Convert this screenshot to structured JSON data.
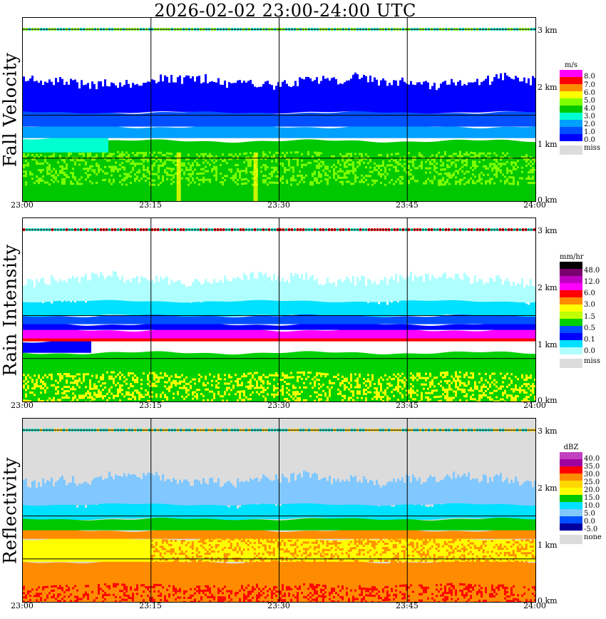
{
  "title": "2026-02-02   23:00-24:00 UTC",
  "x_tick_labels": [
    "23:00",
    "23:15",
    "23:30",
    "23:45",
    "24:00"
  ],
  "height_labels": [
    "3 km",
    "2 km",
    "1 km",
    "0 km"
  ],
  "chart_data": [
    {
      "type": "heatmap",
      "panel": "fall-velocity",
      "ylabel": "Fall Velocity",
      "colorbar_unit": "m/s",
      "colorbar_ticks": [
        "8.0",
        "7.0",
        "6.0",
        "5.0",
        "4.0",
        "3.0",
        "2.0",
        "1.0",
        "0.0"
      ],
      "colorbar_colors": [
        "#ff00ff",
        "#ff0000",
        "#ff8c00",
        "#ffff00",
        "#7fff00",
        "#00c800",
        "#00ffd0",
        "#00a0ff",
        "#0050ff",
        "#0000ff"
      ],
      "missing_label": "miss",
      "x_range": [
        "23:00",
        "24:00"
      ],
      "y_range_km": [
        0,
        3.2
      ],
      "background": "#ffffff",
      "layers": [
        {
          "from_km": 0.0,
          "to_km": 1.05,
          "color": "#00c800"
        },
        {
          "from_km": 0.3,
          "to_km": 0.85,
          "color": "#7fff00",
          "sparse": true
        },
        {
          "from_km": 0.85,
          "to_km": 1.1,
          "color": "#00ffd0",
          "extent": [
            "23:00",
            "23:10"
          ]
        },
        {
          "from_km": 1.1,
          "to_km": 1.3,
          "color": "#00a0ff"
        },
        {
          "from_km": 1.3,
          "to_km": 1.55,
          "color": "#0050ff"
        },
        {
          "from_km": 1.55,
          "to_km": 2.0,
          "color": "#0000ff",
          "ragged": true
        }
      ],
      "streaks": [
        {
          "time": "23:18",
          "color": "#ffff00"
        },
        {
          "time": "23:27",
          "color": "#ffff00"
        }
      ],
      "top_band_km": 3.0
    },
    {
      "type": "heatmap",
      "panel": "rain-intensity",
      "ylabel": "Rain Intensity",
      "colorbar_unit": "mm/hr",
      "colorbar_ticks": [
        "48.0",
        "12.0",
        "6.0",
        "3.0",
        "1.5",
        "0.5",
        "0.1",
        "0.0"
      ],
      "colorbar_colors": [
        "#000000",
        "#7a0070",
        "#c000c0",
        "#ff00ff",
        "#ff0000",
        "#ff8c00",
        "#ffff00",
        "#bfff00",
        "#00d000",
        "#0050ff",
        "#0000ff",
        "#00e0ff",
        "#b0ffff"
      ],
      "missing_label": "miss",
      "x_range": [
        "23:00",
        "24:00"
      ],
      "y_range_km": [
        0,
        3.2
      ],
      "background": "#ffffff",
      "layers": [
        {
          "from_km": 0.0,
          "to_km": 0.85,
          "color": "#00d000"
        },
        {
          "from_km": 0.0,
          "to_km": 0.5,
          "color": "#ffff00",
          "sparse": true
        },
        {
          "from_km": 0.85,
          "to_km": 1.05,
          "color": "#0000ff",
          "extent": [
            "23:00",
            "23:08"
          ]
        },
        {
          "from_km": 1.05,
          "to_km": 1.15,
          "color": "#ff0000"
        },
        {
          "from_km": 1.1,
          "to_km": 1.25,
          "color": "#ff00ff"
        },
        {
          "from_km": 1.25,
          "to_km": 1.35,
          "color": "#0000ff"
        },
        {
          "from_km": 1.35,
          "to_km": 1.5,
          "color": "#0050ff"
        },
        {
          "from_km": 1.5,
          "to_km": 1.75,
          "color": "#00e0ff",
          "ragged": true
        },
        {
          "from_km": 1.75,
          "to_km": 2.05,
          "color": "#b0ffff",
          "ragged": true
        }
      ],
      "top_band_km": 3.0
    },
    {
      "type": "heatmap",
      "panel": "reflectivity",
      "ylabel": "Reflectivity",
      "colorbar_unit": "dBZ",
      "colorbar_ticks": [
        "40.0",
        "35.0",
        "30.0",
        "25.0",
        "20.0",
        "15.0",
        "10.0",
        "5.0",
        "0.0",
        "-5.0"
      ],
      "colorbar_colors": [
        "#c040c0",
        "#a000a0",
        "#ff0000",
        "#ff8c00",
        "#ffd700",
        "#ffff00",
        "#00c800",
        "#00e0ff",
        "#80c8ff",
        "#0050ff",
        "#0000a0"
      ],
      "missing_label": "none",
      "x_range": [
        "23:00",
        "24:00"
      ],
      "y_range_km": [
        0,
        3.2
      ],
      "background": "#dcdcdc",
      "layers": [
        {
          "from_km": 0.0,
          "to_km": 0.7,
          "color": "#ff8c00"
        },
        {
          "from_km": 0.0,
          "to_km": 0.3,
          "color": "#ff0000",
          "sparse": true
        },
        {
          "from_km": 0.7,
          "to_km": 1.1,
          "color": "#ffff00"
        },
        {
          "from_km": 0.7,
          "to_km": 1.1,
          "color": "#ff8c00",
          "extent": [
            "23:15",
            "24:00"
          ],
          "sparse": true
        },
        {
          "from_km": 1.1,
          "to_km": 1.25,
          "color": "#ff8c00"
        },
        {
          "from_km": 1.25,
          "to_km": 1.45,
          "color": "#00c800"
        },
        {
          "from_km": 1.45,
          "to_km": 1.7,
          "color": "#00e0ff",
          "ragged": true
        },
        {
          "from_km": 1.7,
          "to_km": 2.05,
          "color": "#80c8ff",
          "ragged": true
        }
      ],
      "top_band_km": 3.0
    }
  ]
}
